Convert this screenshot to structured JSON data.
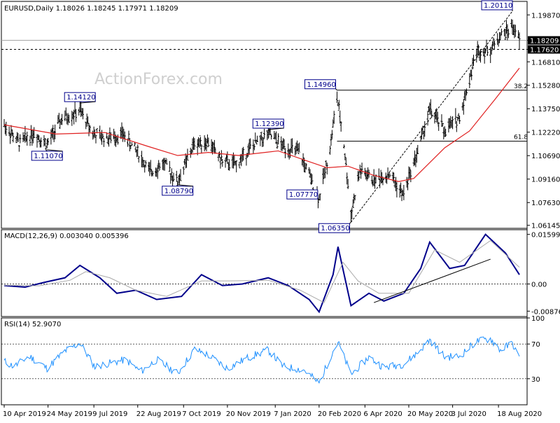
{
  "chart_data": [
    {
      "type": "candlestick-line",
      "panel": "price",
      "title": "EURUSD,Daily  1.18026 1.18245 1.17971 1.18209",
      "watermark": "ActionForex.com",
      "y_ticks": [
        "1.19870",
        "1.18209",
        "1.17620",
        "1.16810",
        "1.15280",
        "1.13750",
        "1.12220",
        "1.10690",
        "1.09160",
        "1.07630",
        "1.06145"
      ],
      "ylim": [
        1.0595,
        1.2075
      ],
      "last_price": 1.18209,
      "dashed_level": 1.1762,
      "annotations": [
        {
          "label": "1.14120",
          "x": "2019-06-25",
          "y": 1.1412
        },
        {
          "label": "1.11070",
          "x": "2019-05-23",
          "y": 1.1107
        },
        {
          "label": "1.08790",
          "x": "2019-10-01",
          "y": 1.0879
        },
        {
          "label": "1.12390",
          "x": "2019-12-31",
          "y": 1.1239
        },
        {
          "label": "1.07770",
          "x": "2020-02-20",
          "y": 1.0777
        },
        {
          "label": "1.14960",
          "x": "2020-03-09",
          "y": 1.1496
        },
        {
          "label": "1.06350",
          "x": "2020-03-23",
          "y": 1.0635
        },
        {
          "label": "1.20110",
          "x": "2020-09-01",
          "y": 1.2011
        }
      ],
      "fib_levels": [
        {
          "label": "38.2",
          "y": 1.1496
        },
        {
          "label": "61.8",
          "y": 1.1163
        }
      ],
      "moving_average_color": "#e02020",
      "bar_color": "#000000",
      "trendline_dashed": {
        "from": {
          "x": "2020-03-23",
          "y": 1.0635
        },
        "to": {
          "x": "2020-09-01",
          "y": 1.2011
        }
      },
      "price_path_close": [
        [
          "2019-04-10",
          1.127
        ],
        [
          "2019-04-25",
          1.115
        ],
        [
          "2019-05-10",
          1.122
        ],
        [
          "2019-05-23",
          1.114
        ],
        [
          "2019-06-07",
          1.131
        ],
        [
          "2019-06-25",
          1.136
        ],
        [
          "2019-07-09",
          1.121
        ],
        [
          "2019-07-22",
          1.118
        ],
        [
          "2019-08-07",
          1.121
        ],
        [
          "2019-08-22",
          1.109
        ],
        [
          "2019-09-03",
          1.096
        ],
        [
          "2019-09-17",
          1.102
        ],
        [
          "2019-10-01",
          1.09
        ],
        [
          "2019-10-18",
          1.115
        ],
        [
          "2019-11-01",
          1.116
        ],
        [
          "2019-11-15",
          1.103
        ],
        [
          "2019-11-29",
          1.101
        ],
        [
          "2019-12-13",
          1.112
        ],
        [
          "2019-12-31",
          1.121
        ],
        [
          "2020-01-15",
          1.113
        ],
        [
          "2020-01-31",
          1.109
        ],
        [
          "2020-02-10",
          1.094
        ],
        [
          "2020-02-20",
          1.079
        ],
        [
          "2020-03-02",
          1.112
        ],
        [
          "2020-03-09",
          1.145
        ],
        [
          "2020-03-16",
          1.114
        ],
        [
          "2020-03-23",
          1.069
        ],
        [
          "2020-04-01",
          1.097
        ],
        [
          "2020-04-15",
          1.091
        ],
        [
          "2020-05-01",
          1.095
        ],
        [
          "2020-05-14",
          1.081
        ],
        [
          "2020-05-29",
          1.11
        ],
        [
          "2020-06-10",
          1.137
        ],
        [
          "2020-06-25",
          1.123
        ],
        [
          "2020-07-10",
          1.132
        ],
        [
          "2020-07-27",
          1.175
        ],
        [
          "2020-08-10",
          1.176
        ],
        [
          "2020-08-20",
          1.185
        ],
        [
          "2020-09-01",
          1.191
        ],
        [
          "2020-09-08",
          1.1821
        ]
      ],
      "moving_average_path": [
        [
          "2019-04-10",
          1.127
        ],
        [
          "2019-06-01",
          1.121
        ],
        [
          "2019-07-20",
          1.122
        ],
        [
          "2019-09-01",
          1.113
        ],
        [
          "2019-10-01",
          1.107
        ],
        [
          "2019-11-01",
          1.109
        ],
        [
          "2019-12-01",
          1.107
        ],
        [
          "2020-01-10",
          1.11
        ],
        [
          "2020-02-10",
          1.103
        ],
        [
          "2020-02-28",
          1.099
        ],
        [
          "2020-03-20",
          1.1
        ],
        [
          "2020-04-15",
          1.094
        ],
        [
          "2020-05-10",
          1.09
        ],
        [
          "2020-05-25",
          1.092
        ],
        [
          "2020-06-25",
          1.112
        ],
        [
          "2020-07-20",
          1.123
        ],
        [
          "2020-08-15",
          1.144
        ],
        [
          "2020-09-08",
          1.164
        ]
      ]
    },
    {
      "type": "line",
      "panel": "macd",
      "title": "MACD(12,26,9) 0.003040 0.005396",
      "y_ticks": [
        "0.015991",
        "0.00",
        "-0.00876"
      ],
      "ylim": [
        -0.0105,
        0.0175
      ],
      "series": [
        {
          "name": "MACD",
          "color": "#00008b",
          "points": [
            [
              "2019-04-10",
              -0.0005
            ],
            [
              "2019-05-01",
              -0.001
            ],
            [
              "2019-05-20",
              0.0005
            ],
            [
              "2019-06-10",
              0.002
            ],
            [
              "2019-06-25",
              0.006
            ],
            [
              "2019-07-15",
              0.002
            ],
            [
              "2019-08-01",
              -0.003
            ],
            [
              "2019-08-20",
              -0.002
            ],
            [
              "2019-09-10",
              -0.005
            ],
            [
              "2019-10-05",
              -0.004
            ],
            [
              "2019-10-25",
              0.003
            ],
            [
              "2019-11-15",
              -0.0005
            ],
            [
              "2019-12-05",
              0.0
            ],
            [
              "2019-12-31",
              0.002
            ],
            [
              "2020-01-20",
              -0.0005
            ],
            [
              "2020-02-10",
              -0.005
            ],
            [
              "2020-02-20",
              -0.009
            ],
            [
              "2020-03-05",
              0.003
            ],
            [
              "2020-03-10",
              0.012
            ],
            [
              "2020-03-23",
              -0.007
            ],
            [
              "2020-04-10",
              -0.003
            ],
            [
              "2020-04-25",
              -0.0055
            ],
            [
              "2020-05-15",
              -0.003
            ],
            [
              "2020-06-01",
              0.005
            ],
            [
              "2020-06-10",
              0.0135
            ],
            [
              "2020-06-30",
              0.005
            ],
            [
              "2020-07-15",
              0.006
            ],
            [
              "2020-08-05",
              0.016
            ],
            [
              "2020-08-25",
              0.01
            ],
            [
              "2020-09-08",
              0.003
            ]
          ]
        },
        {
          "name": "Signal",
          "color": "#a9a9a9",
          "points": [
            [
              "2019-04-10",
              -0.0004
            ],
            [
              "2019-05-15",
              -0.0006
            ],
            [
              "2019-06-15",
              0.0012
            ],
            [
              "2019-07-01",
              0.004
            ],
            [
              "2019-07-25",
              0.002
            ],
            [
              "2019-08-20",
              -0.002
            ],
            [
              "2019-09-20",
              -0.004
            ],
            [
              "2019-10-25",
              0.001
            ],
            [
              "2019-11-20",
              0.001
            ],
            [
              "2019-12-31",
              0.0012
            ],
            [
              "2020-02-01",
              -0.002
            ],
            [
              "2020-02-25",
              -0.006
            ],
            [
              "2020-03-15",
              0.007
            ],
            [
              "2020-03-30",
              0.001
            ],
            [
              "2020-04-20",
              -0.003
            ],
            [
              "2020-05-20",
              -0.003
            ],
            [
              "2020-06-15",
              0.011
            ],
            [
              "2020-07-10",
              0.007
            ],
            [
              "2020-08-10",
              0.014
            ],
            [
              "2020-09-08",
              0.0054
            ]
          ]
        }
      ],
      "trendline": {
        "from": {
          "x": "2020-04-15",
          "y": -0.006
        },
        "to": {
          "x": "2020-08-10",
          "y": 0.008
        }
      }
    },
    {
      "type": "line",
      "panel": "rsi",
      "title": "RSI(14) 52.9070",
      "y_ticks": [
        "100",
        "70",
        "30"
      ],
      "ylim": [
        0,
        100
      ],
      "reference_lines": [
        70,
        30
      ],
      "series": [
        {
          "name": "RSI",
          "color": "#1e90ff",
          "points": [
            [
              "2019-04-10",
              50
            ],
            [
              "2019-04-20",
              44
            ],
            [
              "2019-05-05",
              56
            ],
            [
              "2019-05-23",
              42
            ],
            [
              "2019-06-10",
              62
            ],
            [
              "2019-06-25",
              71
            ],
            [
              "2019-07-10",
              44
            ],
            [
              "2019-07-25",
              48
            ],
            [
              "2019-08-10",
              52
            ],
            [
              "2019-08-25",
              38
            ],
            [
              "2019-09-10",
              52
            ],
            [
              "2019-10-01",
              36
            ],
            [
              "2019-10-18",
              64
            ],
            [
              "2019-11-01",
              57
            ],
            [
              "2019-11-20",
              42
            ],
            [
              "2019-12-10",
              54
            ],
            [
              "2019-12-31",
              63
            ],
            [
              "2020-01-15",
              44
            ],
            [
              "2020-02-05",
              40
            ],
            [
              "2020-02-20",
              25
            ],
            [
              "2020-03-05",
              62
            ],
            [
              "2020-03-10",
              72
            ],
            [
              "2020-03-23",
              35
            ],
            [
              "2020-04-10",
              55
            ],
            [
              "2020-04-25",
              43
            ],
            [
              "2020-05-15",
              47
            ],
            [
              "2020-05-29",
              60
            ],
            [
              "2020-06-10",
              75
            ],
            [
              "2020-06-25",
              55
            ],
            [
              "2020-07-10",
              56
            ],
            [
              "2020-07-27",
              73
            ],
            [
              "2020-08-10",
              76
            ],
            [
              "2020-08-20",
              63
            ],
            [
              "2020-09-01",
              71
            ],
            [
              "2020-09-08",
              53
            ]
          ]
        }
      ]
    }
  ],
  "x_axis": {
    "labels": [
      {
        "text": "10 Apr 2019",
        "date": "2019-04-10"
      },
      {
        "text": "24 May 2019",
        "date": "2019-05-24"
      },
      {
        "text": "9 Jul 2019",
        "date": "2019-07-09"
      },
      {
        "text": "22 Aug 2019",
        "date": "2019-08-22"
      },
      {
        "text": "7 Oct 2019",
        "date": "2019-10-07"
      },
      {
        "text": "20 Nov 2019",
        "date": "2019-11-20"
      },
      {
        "text": "7 Jan 2020",
        "date": "2020-01-07"
      },
      {
        "text": "20 Feb 2020",
        "date": "2020-02-20"
      },
      {
        "text": "6 Apr 2020",
        "date": "2020-04-06"
      },
      {
        "text": "20 May 2020",
        "date": "2020-05-20"
      },
      {
        "text": "3 Jul 2020",
        "date": "2020-07-03"
      },
      {
        "text": "18 Aug 2020",
        "date": "2020-08-18"
      }
    ],
    "range": [
      "2019-04-10",
      "2020-09-08"
    ]
  }
}
